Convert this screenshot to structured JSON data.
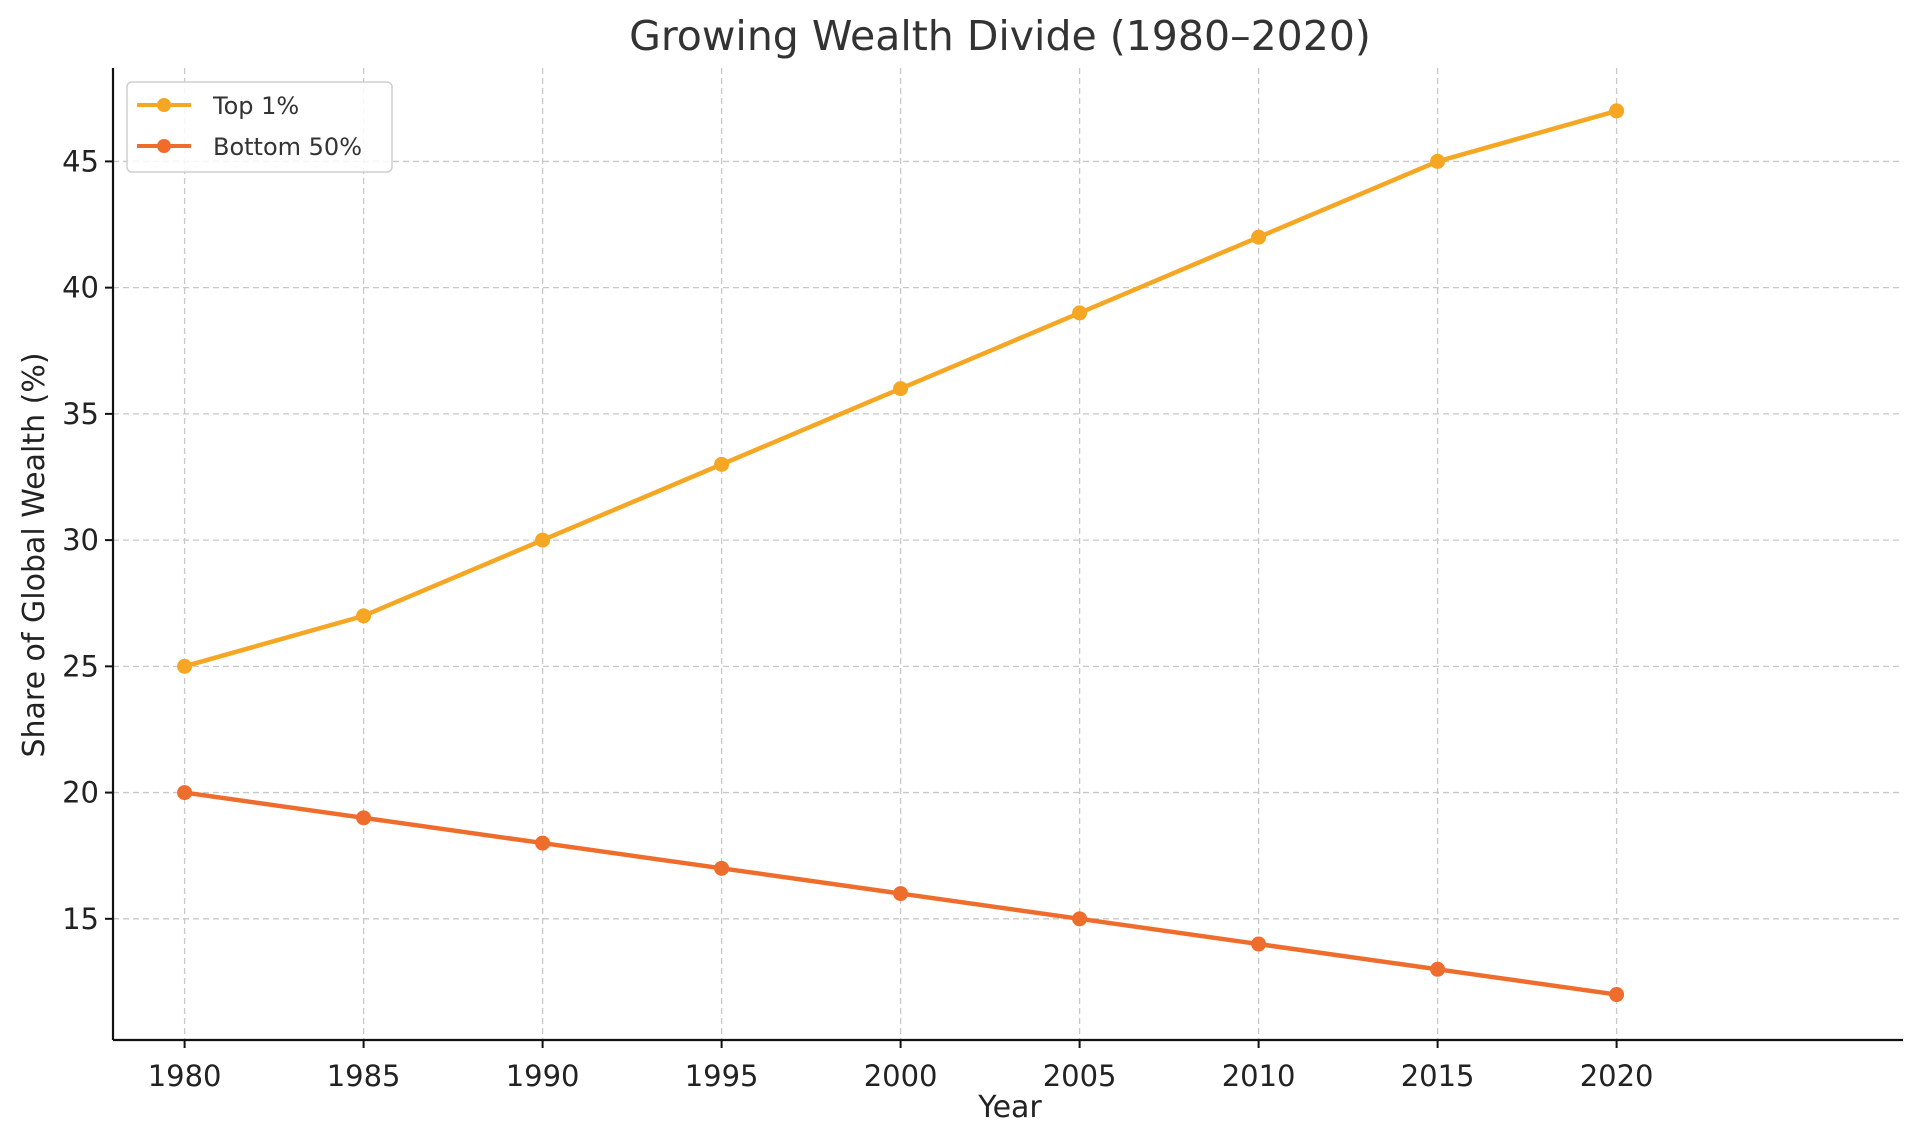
{
  "chart_data": {
    "type": "line",
    "title": "Growing Wealth Divide (1980–2020)",
    "xlabel": "Year",
    "ylabel": "Share of Global Wealth (%)",
    "x": [
      1980,
      1985,
      1990,
      1995,
      2000,
      2005,
      2010,
      2015,
      2020
    ],
    "x_tick_labels": [
      "1980",
      "1985",
      "1990",
      "1995",
      "2000",
      "2005",
      "2010",
      "2015",
      "2020"
    ],
    "xlim": [
      1978,
      2028
    ],
    "y_ticks": [
      15,
      20,
      25,
      30,
      35,
      40,
      45
    ],
    "y_tick_labels": [
      "15",
      "20",
      "25",
      "30",
      "35",
      "40",
      "45"
    ],
    "ylim": [
      10.2,
      48.7
    ],
    "grid": true,
    "legend_position": "top-left",
    "series": [
      {
        "name": "Top 1%",
        "color": "#F5A623",
        "values": [
          25,
          27,
          30,
          33,
          36,
          39,
          42,
          45,
          47
        ]
      },
      {
        "name": "Bottom 50%",
        "color": "#EE6C2C",
        "values": [
          20,
          19,
          18,
          17,
          16,
          15,
          14,
          13,
          12
        ]
      }
    ]
  }
}
